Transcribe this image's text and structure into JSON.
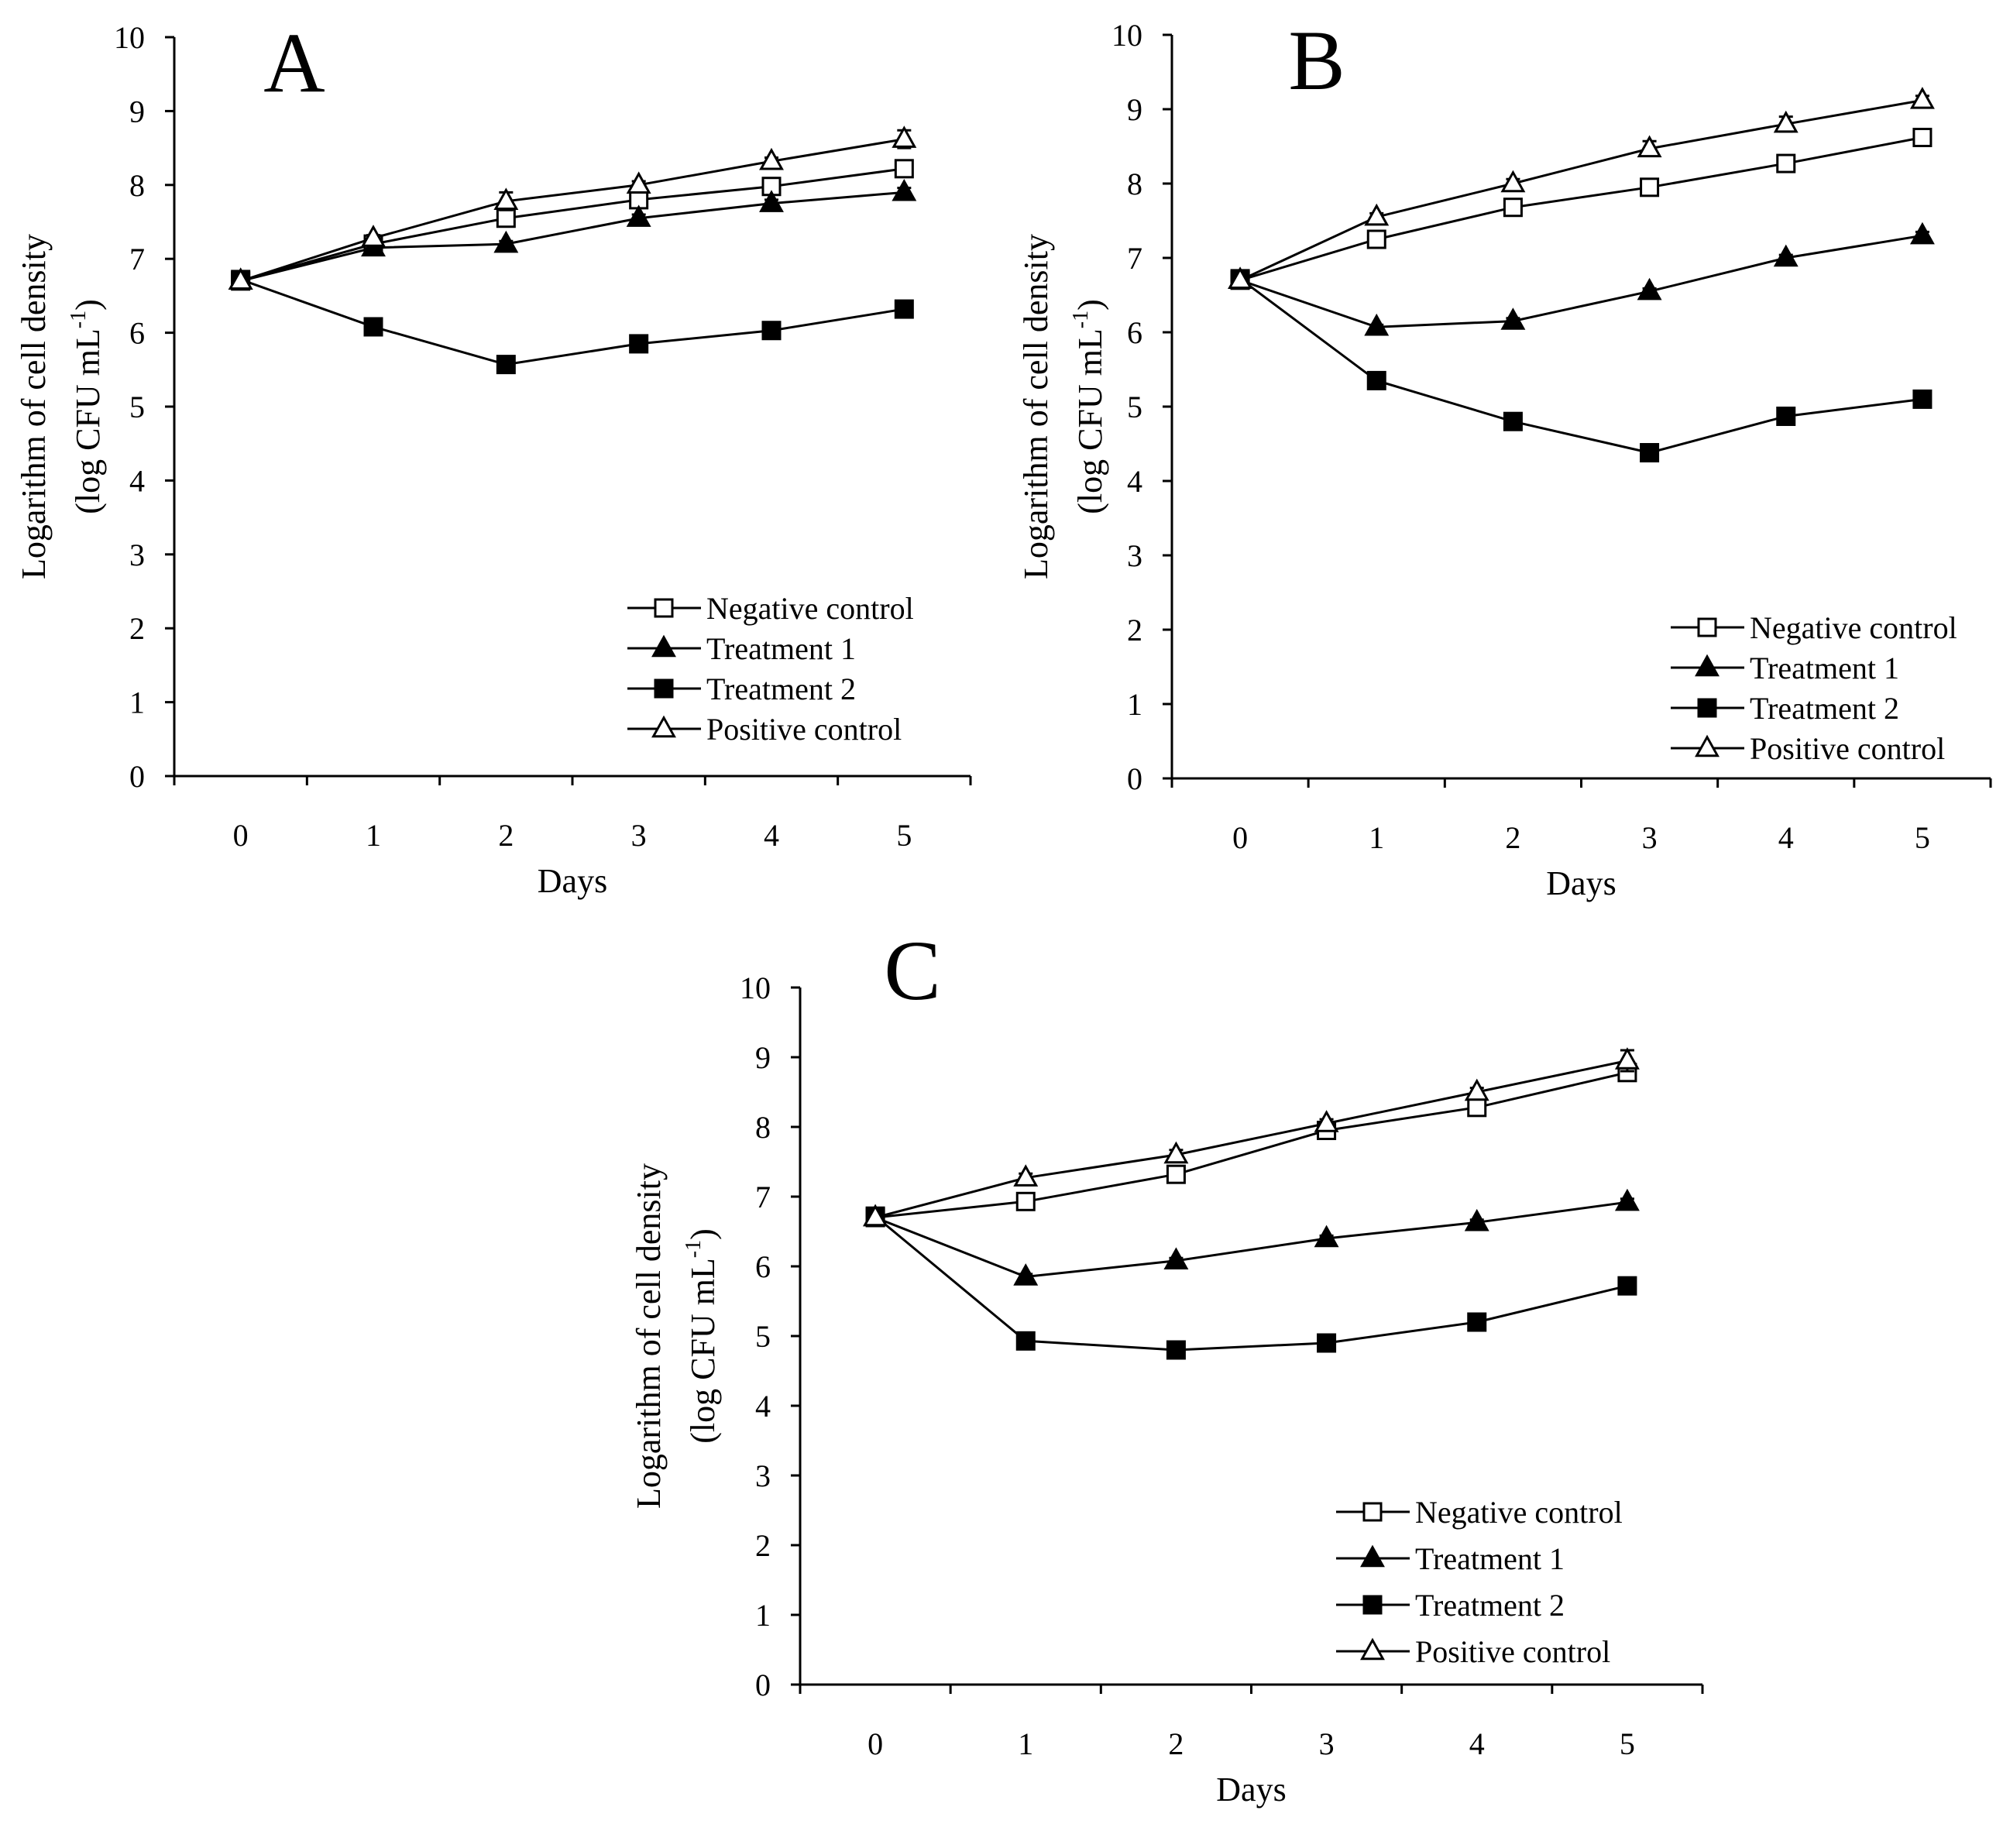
{
  "figure": {
    "background": "#ffffff",
    "ink": "#000000"
  },
  "chart_data": [
    {
      "panel": "A",
      "type": "line",
      "xlabel": "Days",
      "ylabel_line1": "Logarithm of cell density",
      "ylabel_line2_prefix": "(log CFU mL",
      "ylabel_line2_sup": "-1",
      "ylabel_line2_suffix": ")",
      "x": [
        0,
        1,
        2,
        3,
        4,
        5
      ],
      "xticks": [
        "0",
        "1",
        "2",
        "3",
        "4",
        "5"
      ],
      "ylim": [
        0,
        10
      ],
      "yticks": [
        "0",
        "1",
        "2",
        "3",
        "4",
        "5",
        "6",
        "7",
        "8",
        "9",
        "10"
      ],
      "legend_position": "bottom-right",
      "series": [
        {
          "name": "Negative control",
          "marker": "open-square",
          "values": [
            6.7,
            7.2,
            7.55,
            7.8,
            7.98,
            8.22
          ],
          "errors": [
            0,
            0.03,
            0.05,
            0.05,
            0.06,
            0.1
          ]
        },
        {
          "name": "Treatment 1",
          "marker": "filled-triangle",
          "values": [
            6.7,
            7.15,
            7.2,
            7.55,
            7.75,
            7.9
          ],
          "errors": [
            0,
            0.03,
            0.04,
            0.05,
            0.05,
            0.06
          ]
        },
        {
          "name": "Treatment 2",
          "marker": "filled-square",
          "values": [
            6.72,
            6.08,
            5.57,
            5.85,
            6.03,
            6.32
          ],
          "errors": [
            0,
            0.03,
            0.03,
            0.04,
            0.03,
            0.04
          ]
        },
        {
          "name": "Positive control",
          "marker": "open-triangle",
          "values": [
            6.7,
            7.28,
            7.78,
            8.0,
            8.32,
            8.62
          ],
          "errors": [
            0,
            0.04,
            0.12,
            0.05,
            0.05,
            0.12
          ]
        }
      ]
    },
    {
      "panel": "B",
      "type": "line",
      "xlabel": "Days",
      "ylabel_line1": "Logarithm of cell density",
      "ylabel_line2_prefix": "(log CFU mL",
      "ylabel_line2_sup": "-1",
      "ylabel_line2_suffix": ")",
      "x": [
        0,
        1,
        2,
        3,
        4,
        5
      ],
      "xticks": [
        "0",
        "1",
        "2",
        "3",
        "4",
        "5"
      ],
      "ylim": [
        0,
        10
      ],
      "yticks": [
        "0",
        "1",
        "2",
        "3",
        "4",
        "5",
        "6",
        "7",
        "8",
        "9",
        "10"
      ],
      "legend_position": "bottom-right",
      "series": [
        {
          "name": "Negative control",
          "marker": "open-square",
          "values": [
            6.7,
            7.25,
            7.68,
            7.95,
            8.27,
            8.62
          ],
          "errors": [
            0,
            0.05,
            0.05,
            0.05,
            0.05,
            0.05
          ]
        },
        {
          "name": "Treatment 1",
          "marker": "filled-triangle",
          "values": [
            6.7,
            6.07,
            6.15,
            6.55,
            7.0,
            7.3
          ],
          "errors": [
            0,
            0.03,
            0.04,
            0.04,
            0.04,
            0.05
          ]
        },
        {
          "name": "Treatment 2",
          "marker": "filled-square",
          "values": [
            6.72,
            5.35,
            4.8,
            4.38,
            4.87,
            5.1
          ],
          "errors": [
            0,
            0.04,
            0.04,
            0.04,
            0.04,
            0.05
          ]
        },
        {
          "name": "Positive control",
          "marker": "open-triangle",
          "values": [
            6.7,
            7.55,
            8.0,
            8.47,
            8.8,
            9.12
          ],
          "errors": [
            0,
            0.05,
            0.06,
            0.1,
            0.1,
            0.06
          ]
        }
      ]
    },
    {
      "panel": "C",
      "type": "line",
      "xlabel": "Days",
      "ylabel_line1": "Logarithm of cell density",
      "ylabel_line2_prefix": "(log CFU mL",
      "ylabel_line2_sup": "-1",
      "ylabel_line2_suffix": ")",
      "x": [
        0,
        1,
        2,
        3,
        4,
        5
      ],
      "xticks": [
        "0",
        "1",
        "2",
        "3",
        "4",
        "5"
      ],
      "ylim": [
        0,
        10
      ],
      "yticks": [
        "0",
        "1",
        "2",
        "3",
        "4",
        "5",
        "6",
        "7",
        "8",
        "9",
        "10"
      ],
      "legend_position": "bottom-right",
      "series": [
        {
          "name": "Negative control",
          "marker": "open-square",
          "values": [
            6.7,
            6.93,
            7.32,
            7.95,
            8.28,
            8.78
          ],
          "errors": [
            0,
            0.05,
            0.05,
            0.05,
            0.05,
            0.06
          ]
        },
        {
          "name": "Treatment 1",
          "marker": "filled-triangle",
          "values": [
            6.7,
            5.85,
            6.08,
            6.4,
            6.63,
            6.92
          ],
          "errors": [
            0,
            0.04,
            0.04,
            0.04,
            0.04,
            0.05
          ]
        },
        {
          "name": "Treatment 2",
          "marker": "filled-square",
          "values": [
            6.72,
            4.93,
            4.8,
            4.9,
            5.2,
            5.72
          ],
          "errors": [
            0,
            0.04,
            0.03,
            0.04,
            0.05,
            0.06
          ]
        },
        {
          "name": "Positive control",
          "marker": "open-triangle",
          "values": [
            6.7,
            7.27,
            7.6,
            8.05,
            8.5,
            8.95
          ],
          "errors": [
            0,
            0.06,
            0.07,
            0.06,
            0.06,
            0.15
          ]
        }
      ]
    }
  ]
}
